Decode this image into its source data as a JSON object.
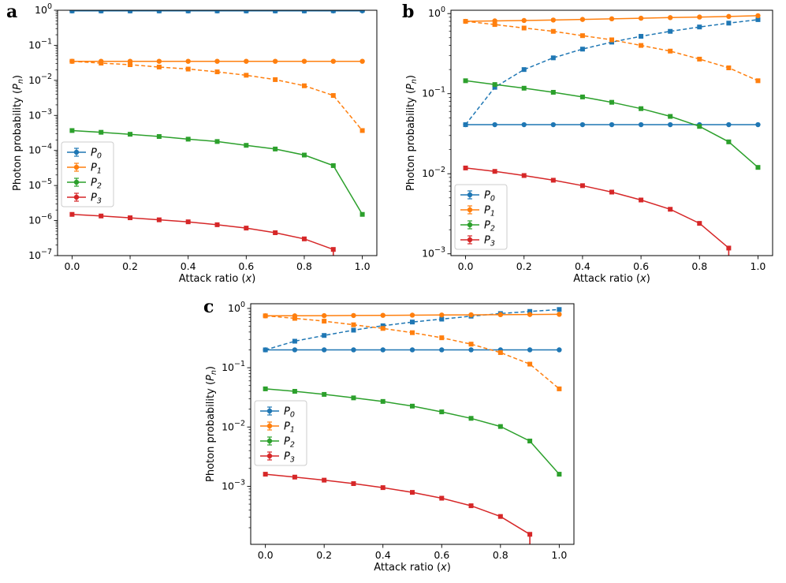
{
  "figure": {
    "colors": {
      "P0": "#1f77b4",
      "P1": "#ff7f0e",
      "P2": "#2ca02c",
      "P3": "#d62728"
    }
  },
  "chart_data": [
    {
      "panel": "a",
      "type": "line",
      "yscale": "log",
      "ylim": [
        1e-07,
        1
      ],
      "xlim": [
        0,
        1
      ],
      "xlabel": "Attack ratio (x)",
      "ylabel": "Photon probability (P_n)",
      "x_ticks": [
        "0.0",
        "0.2",
        "0.4",
        "0.6",
        "0.8",
        "1.0"
      ],
      "y_ticks": [
        "10^0",
        "10^-1",
        "10^-2",
        "10^-3",
        "10^-4",
        "10^-5",
        "10^-6",
        "10^-7"
      ],
      "legend_position": "lower-left",
      "legend": [
        "P0",
        "P1",
        "P2",
        "P3"
      ],
      "x": [
        0.0,
        0.1,
        0.2,
        0.3,
        0.4,
        0.5,
        0.6,
        0.7,
        0.8,
        0.9,
        1.0
      ],
      "series": [
        {
          "name": "P0",
          "style": "solid",
          "values": [
            0.96,
            0.96,
            0.96,
            0.96,
            0.96,
            0.96,
            0.96,
            0.96,
            0.96,
            0.96,
            0.96
          ]
        },
        {
          "name": "P0",
          "style": "dashed",
          "values": [
            0.96,
            0.96,
            0.96,
            0.96,
            0.96,
            0.96,
            0.96,
            0.96,
            0.96,
            0.97,
            1.0
          ]
        },
        {
          "name": "P1",
          "style": "solid",
          "values": [
            0.035,
            0.035,
            0.035,
            0.035,
            0.035,
            0.035,
            0.035,
            0.035,
            0.035,
            0.035,
            0.035
          ]
        },
        {
          "name": "P1",
          "style": "dashed",
          "values": [
            0.035,
            0.031,
            0.028,
            0.024,
            0.021,
            0.0175,
            0.014,
            0.0105,
            0.007,
            0.0037,
            0.00037
          ]
        },
        {
          "name": "P2",
          "style": "solid",
          "values": [
            0.00037,
            0.00033,
            0.00029,
            0.00025,
            0.00021,
            0.00018,
            0.00014,
            0.00011,
            7.4e-05,
            3.7e-05,
            1.5e-06
          ]
        },
        {
          "name": "P3",
          "style": "solid",
          "values": [
            1.5e-06,
            1.35e-06,
            1.2e-06,
            1.05e-06,
            9.2e-07,
            7.6e-07,
            6.1e-07,
            4.5e-07,
            3e-07,
            1.5e-07,
            null
          ]
        }
      ]
    },
    {
      "panel": "b",
      "type": "line",
      "yscale": "log",
      "ylim": [
        0.00095,
        1.1
      ],
      "xlim": [
        0,
        1
      ],
      "xlabel": "Attack ratio (x)",
      "ylabel": "Photon probability (P_n)",
      "x_ticks": [
        "0.0",
        "0.2",
        "0.4",
        "0.6",
        "0.8",
        "1.0"
      ],
      "y_ticks": [
        "10^0",
        "10^-1",
        "10^-2",
        "10^-3"
      ],
      "legend_position": "lower-left",
      "legend": [
        "P0",
        "P1",
        "P2",
        "P3"
      ],
      "x": [
        0.0,
        0.1,
        0.2,
        0.3,
        0.4,
        0.5,
        0.6,
        0.7,
        0.8,
        0.9,
        1.0
      ],
      "series": [
        {
          "name": "P0",
          "style": "solid",
          "values": [
            0.041,
            0.041,
            0.041,
            0.041,
            0.041,
            0.041,
            0.041,
            0.041,
            0.041,
            0.041,
            0.041
          ]
        },
        {
          "name": "P0",
          "style": "dashed",
          "values": [
            0.041,
            0.12,
            0.2,
            0.28,
            0.36,
            0.44,
            0.52,
            0.6,
            0.68,
            0.76,
            0.84
          ]
        },
        {
          "name": "P1",
          "style": "solid",
          "values": [
            0.8,
            0.81,
            0.82,
            0.83,
            0.845,
            0.86,
            0.875,
            0.89,
            0.905,
            0.92,
            0.94
          ]
        },
        {
          "name": "P1",
          "style": "dashed",
          "values": [
            0.8,
            0.73,
            0.66,
            0.6,
            0.53,
            0.47,
            0.4,
            0.34,
            0.27,
            0.21,
            0.145
          ]
        },
        {
          "name": "P2",
          "style": "solid",
          "values": [
            0.145,
            0.13,
            0.117,
            0.104,
            0.091,
            0.078,
            0.065,
            0.052,
            0.039,
            0.025,
            0.012
          ]
        },
        {
          "name": "P3",
          "style": "solid",
          "values": [
            0.0118,
            0.0107,
            0.0095,
            0.0083,
            0.0071,
            0.0059,
            0.0047,
            0.0036,
            0.0024,
            0.00118,
            null
          ]
        }
      ]
    },
    {
      "panel": "c",
      "type": "line",
      "yscale": "log",
      "ylim": [
        0.000105,
        1.2
      ],
      "xlim": [
        0,
        1
      ],
      "xlabel": "Attack ratio (x)",
      "ylabel": "Photon probability (P_n)",
      "x_ticks": [
        "0.0",
        "0.2",
        "0.4",
        "0.6",
        "0.8",
        "1.0"
      ],
      "y_ticks": [
        "10^0",
        "10^-1",
        "10^-2",
        "10^-3"
      ],
      "legend_position": "center-left",
      "legend": [
        "P0",
        "P1",
        "P2",
        "P3"
      ],
      "x": [
        0.0,
        0.1,
        0.2,
        0.3,
        0.4,
        0.5,
        0.6,
        0.7,
        0.8,
        0.9,
        1.0
      ],
      "series": [
        {
          "name": "P0",
          "style": "solid",
          "values": [
            0.2,
            0.2,
            0.2,
            0.2,
            0.2,
            0.2,
            0.2,
            0.2,
            0.2,
            0.2,
            0.2
          ]
        },
        {
          "name": "P0",
          "style": "dashed",
          "values": [
            0.2,
            0.28,
            0.35,
            0.43,
            0.51,
            0.59,
            0.66,
            0.74,
            0.82,
            0.89,
            0.96
          ]
        },
        {
          "name": "P1",
          "style": "solid",
          "values": [
            0.75,
            0.75,
            0.755,
            0.76,
            0.765,
            0.77,
            0.775,
            0.78,
            0.785,
            0.79,
            0.795
          ]
        },
        {
          "name": "P1",
          "style": "dashed",
          "values": [
            0.75,
            0.68,
            0.61,
            0.53,
            0.46,
            0.39,
            0.32,
            0.25,
            0.18,
            0.115,
            0.044
          ]
        },
        {
          "name": "P2",
          "style": "solid",
          "values": [
            0.044,
            0.04,
            0.0355,
            0.031,
            0.027,
            0.0225,
            0.018,
            0.014,
            0.0102,
            0.0058,
            0.0016
          ]
        },
        {
          "name": "P3",
          "style": "solid",
          "values": [
            0.0016,
            0.00143,
            0.00127,
            0.00111,
            0.00095,
            0.00079,
            0.00063,
            0.00047,
            0.00031,
            0.000155,
            null
          ]
        }
      ]
    }
  ]
}
